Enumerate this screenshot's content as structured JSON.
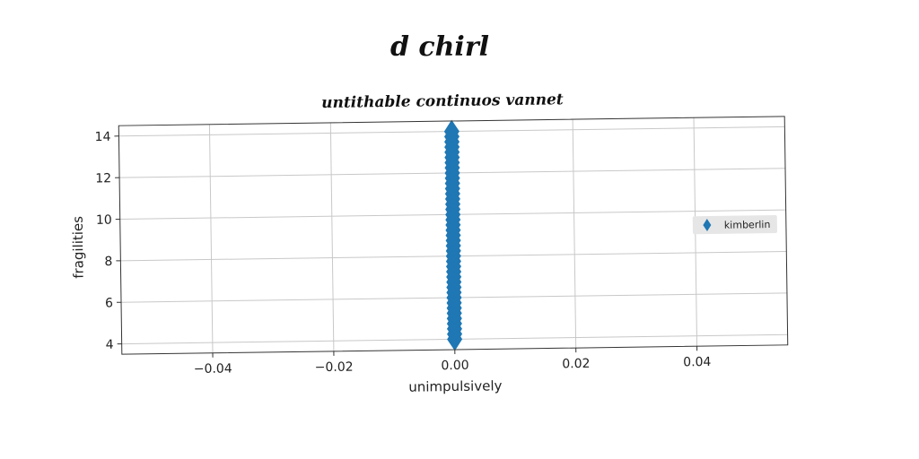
{
  "figure": {
    "suptitle": "d chirl",
    "colors": {
      "series": "#1f77b4",
      "grid": "#c8c8c8",
      "frame": "#333333",
      "legend_bg": "#e6e6e6"
    }
  },
  "chart_data": {
    "type": "scatter",
    "title": "untithable continuos vannet",
    "xlabel": "unimpulsively",
    "ylabel": "fragilities",
    "xlim": [
      -0.055,
      0.055
    ],
    "ylim": [
      3.5,
      14.5
    ],
    "xticks": [
      -0.04,
      -0.02,
      0.0,
      0.02,
      0.04
    ],
    "xtick_labels": [
      "−0.04",
      "−0.02",
      "0.00",
      "0.02",
      "0.04"
    ],
    "yticks": [
      4,
      6,
      8,
      10,
      12,
      14
    ],
    "ytick_labels": [
      "4",
      "6",
      "8",
      "10",
      "12",
      "14"
    ],
    "grid": true,
    "legend_position": "right",
    "marker": "diamond",
    "series": [
      {
        "name": "kimberlin",
        "x": [
          0,
          0,
          0,
          0,
          0,
          0,
          0,
          0,
          0,
          0,
          0,
          0,
          0,
          0,
          0,
          0,
          0,
          0,
          0,
          0,
          0,
          0,
          0,
          0,
          0,
          0,
          0,
          0,
          0,
          0,
          0,
          0,
          0,
          0,
          0,
          0,
          0,
          0,
          0,
          0,
          0
        ],
        "y": [
          4.0,
          4.25,
          4.5,
          4.75,
          5.0,
          5.25,
          5.5,
          5.75,
          6.0,
          6.25,
          6.5,
          6.75,
          7.0,
          7.25,
          7.5,
          7.75,
          8.0,
          8.25,
          8.5,
          8.75,
          9.0,
          9.25,
          9.5,
          9.75,
          10.0,
          10.25,
          10.5,
          10.75,
          11.0,
          11.25,
          11.5,
          11.75,
          12.0,
          12.25,
          12.5,
          12.75,
          13.0,
          13.25,
          13.5,
          13.75,
          14.0
        ]
      }
    ]
  }
}
